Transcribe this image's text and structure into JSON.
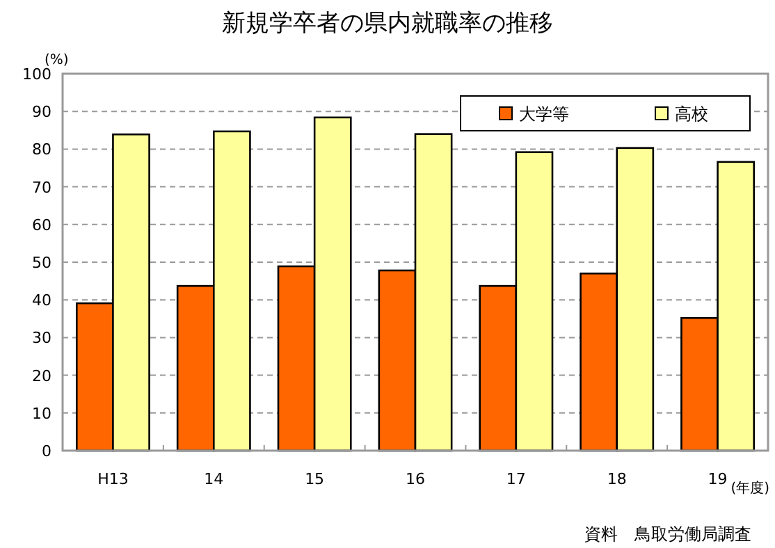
{
  "chart_data": {
    "type": "bar",
    "title": "新規学卒者の県内就職率の推移",
    "ylabel": "(%)",
    "xlabel": "(年度)",
    "categories": [
      "H13",
      "14",
      "15",
      "16",
      "17",
      "18",
      "19"
    ],
    "series": [
      {
        "name": "大学等",
        "color": "#ff6600",
        "values": [
          39.1,
          43.7,
          48.9,
          47.8,
          43.7,
          47.0,
          35.2
        ]
      },
      {
        "name": "高校",
        "color": "#ffff99",
        "values": [
          83.9,
          84.7,
          88.4,
          84.0,
          79.2,
          80.3,
          76.6
        ]
      }
    ],
    "ylim": [
      0,
      100
    ],
    "yticks": [
      0,
      10,
      20,
      30,
      40,
      50,
      60,
      70,
      80,
      90,
      100
    ],
    "grid": "y",
    "legend": "top right",
    "annotations": [
      "資料　鳥取労働局調査"
    ]
  }
}
